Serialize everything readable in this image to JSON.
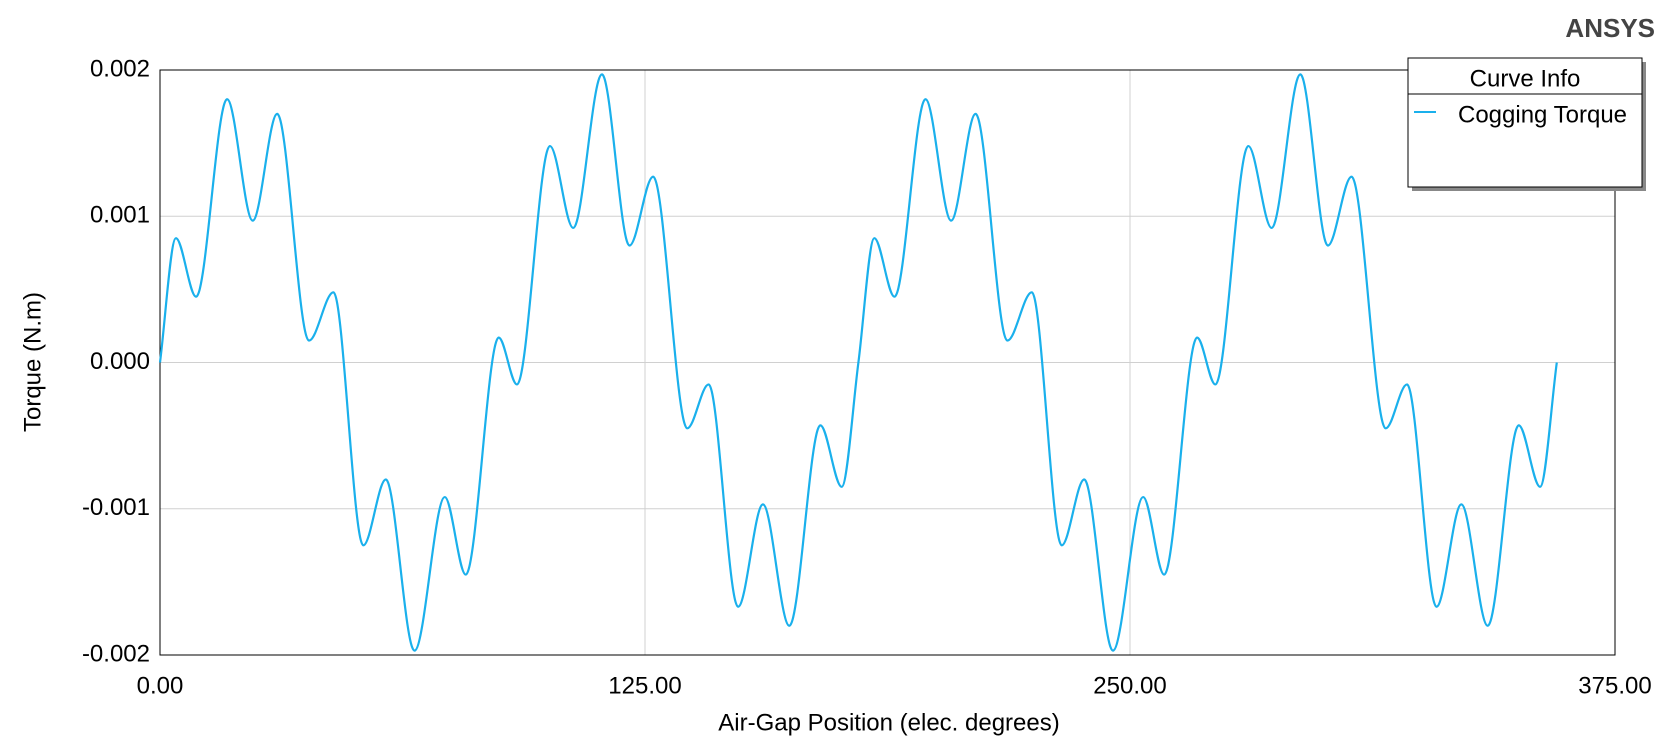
{
  "chart_data": {
    "type": "line",
    "brand": "ANSYS",
    "xlabel": "Air-Gap Position (elec. degrees)",
    "ylabel": "Torque (N.m)",
    "legend_title": "Curve Info",
    "legend": "top-right",
    "grid": true,
    "xlim": [
      0,
      375
    ],
    "ylim": [
      -0.002,
      0.002
    ],
    "xticks": [
      {
        "value": 0,
        "label": "0.00"
      },
      {
        "value": 125,
        "label": "125.00"
      },
      {
        "value": 250,
        "label": "250.00"
      },
      {
        "value": 375,
        "label": "375.00"
      }
    ],
    "yticks": [
      -0.002,
      -0.001,
      {
        "value": 0,
        "label": "0.000"
      },
      0.001,
      0.002
    ],
    "x": [
      0,
      4.1,
      9.3,
      17.3,
      23.9,
      30.2,
      38.4,
      44.7,
      52.4,
      58.2,
      65.6,
      73.4,
      78.8,
      87.3,
      92,
      100.5,
      106.5,
      113.9,
      121,
      127.1,
      135.9,
      141.4,
      149,
      155.4,
      162.2,
      170.2,
      175.7,
      180,
      184.1,
      189.3,
      197.3,
      203.9,
      210.2,
      218.4,
      224.7,
      232.4,
      238.2,
      245.6,
      253.4,
      258.8,
      267.3,
      272,
      280.5,
      286.5,
      293.9,
      301,
      307.1,
      315.9,
      321.4,
      329,
      335.4,
      342.2,
      350.2,
      355.7,
      360
    ],
    "series": [
      {
        "name": "Cogging Torque",
        "color": "#1ab0ec",
        "values": [
          0,
          0.00085,
          0.00045,
          0.0018,
          0.00097,
          0.0017,
          0.00015,
          0.00048,
          -0.00125,
          -0.0008,
          -0.00197,
          -0.00092,
          -0.00145,
          0.00017,
          -0.00015,
          0.00148,
          0.00092,
          0.00197,
          0.0008,
          0.00127,
          -0.00045,
          -0.00015,
          -0.00167,
          -0.00097,
          -0.0018,
          -0.00043,
          -0.00085,
          0,
          0.00085,
          0.00045,
          0.0018,
          0.00097,
          0.0017,
          0.00015,
          0.00048,
          -0.00125,
          -0.0008,
          -0.00197,
          -0.00092,
          -0.00145,
          0.00017,
          -0.00015,
          0.00148,
          0.00092,
          0.00197,
          0.0008,
          0.00127,
          -0.00045,
          -0.00015,
          -0.00167,
          -0.00097,
          -0.0018,
          -0.00043,
          -0.00085,
          0
        ]
      }
    ]
  }
}
